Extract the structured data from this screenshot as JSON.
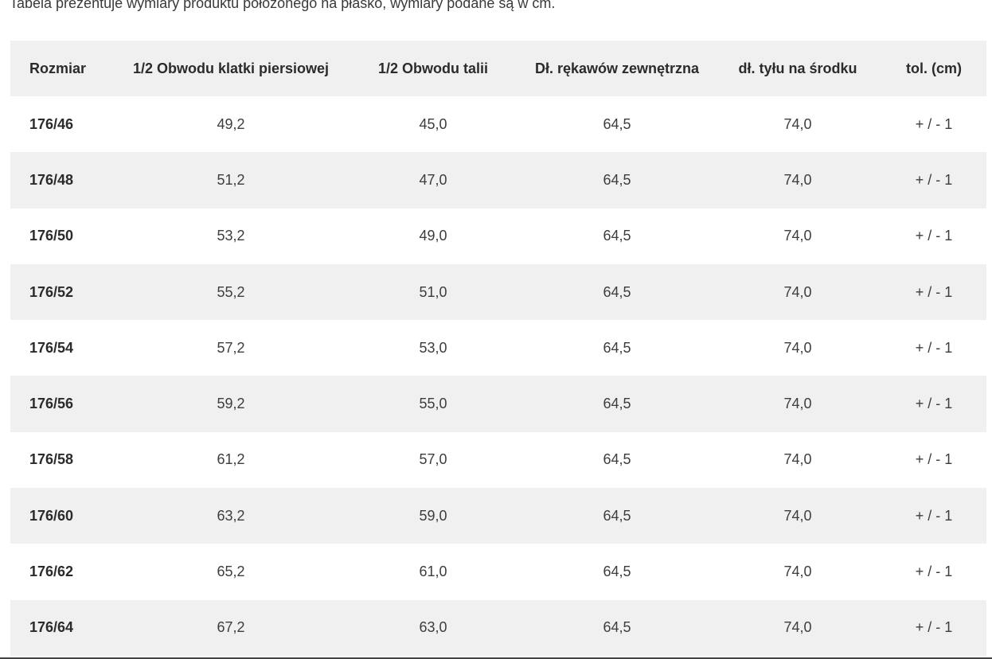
{
  "intro_text": "Tabela prezentuje wymiary produktu położonego na płasko, wymiary podane są w cm.",
  "table": {
    "headers": [
      "Rozmiar",
      "1/2 Obwodu klatki piersiowej",
      "1/2 Obwodu talii",
      "Dł. rękawów zewnętrzna",
      "dł. tyłu na środku",
      "tol. (cm)"
    ],
    "rows": [
      [
        "176/46",
        "49,2",
        "45,0",
        "64,5",
        "74,0",
        "+ / - 1"
      ],
      [
        "176/48",
        "51,2",
        "47,0",
        "64,5",
        "74,0",
        "+ / - 1"
      ],
      [
        "176/50",
        "53,2",
        "49,0",
        "64,5",
        "74,0",
        "+ / - 1"
      ],
      [
        "176/52",
        "55,2",
        "51,0",
        "64,5",
        "74,0",
        "+ / - 1"
      ],
      [
        "176/54",
        "57,2",
        "53,0",
        "64,5",
        "74,0",
        "+ / - 1"
      ],
      [
        "176/56",
        "59,2",
        "55,0",
        "64,5",
        "74,0",
        "+ / - 1"
      ],
      [
        "176/58",
        "61,2",
        "57,0",
        "64,5",
        "74,0",
        "+ / - 1"
      ],
      [
        "176/60",
        "63,2",
        "59,0",
        "64,5",
        "74,0",
        "+ / - 1"
      ],
      [
        "176/62",
        "65,2",
        "61,0",
        "64,5",
        "74,0",
        "+ / - 1"
      ],
      [
        "176/64",
        "67,2",
        "63,0",
        "64,5",
        "74,0",
        "+ / - 1"
      ]
    ]
  },
  "colors": {
    "stripe": "#f0f0f0",
    "text": "#333333"
  }
}
